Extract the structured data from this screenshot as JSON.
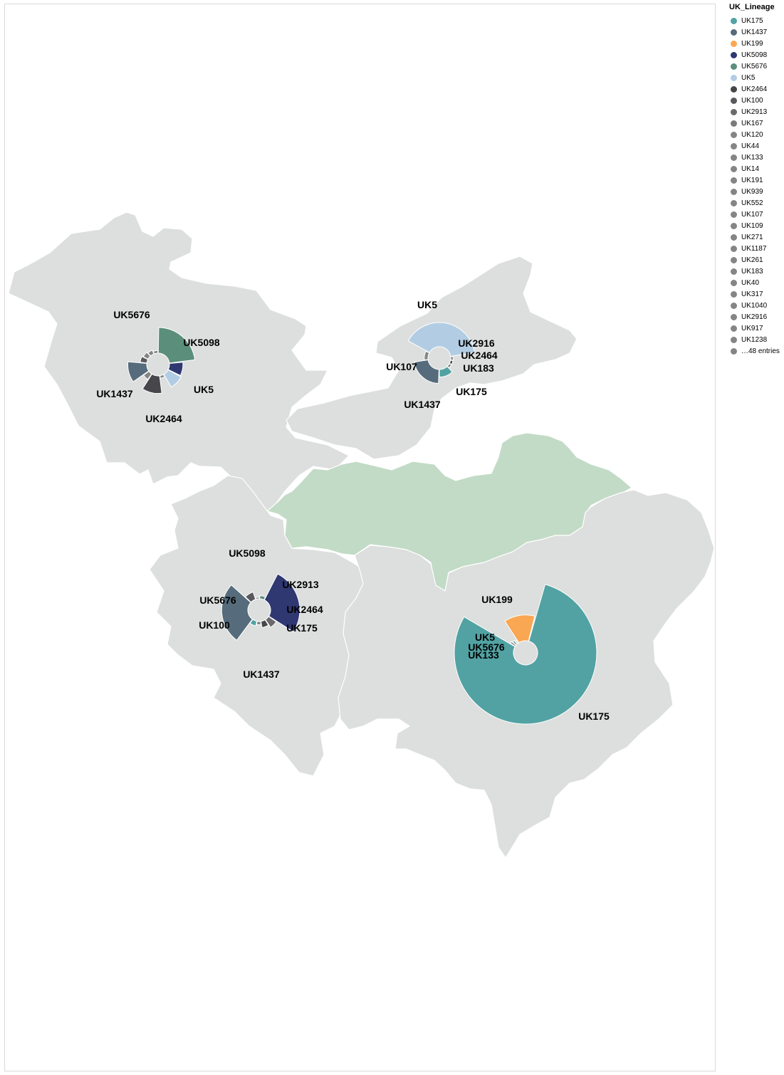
{
  "legend": {
    "title": "UK_Lineage",
    "items": [
      {
        "label": "UK175",
        "color": "#52a2a3"
      },
      {
        "label": "UK1437",
        "color": "#566b7b"
      },
      {
        "label": "UK199",
        "color": "#f9a753"
      },
      {
        "label": "UK5098",
        "color": "#2f3871"
      },
      {
        "label": "UK5676",
        "color": "#5b8e7b"
      },
      {
        "label": "UK5",
        "color": "#b2cde3"
      },
      {
        "label": "UK2464",
        "color": "#47474b"
      },
      {
        "label": "UK100",
        "color": "#59595d"
      },
      {
        "label": "UK2913",
        "color": "#6b6b6e"
      },
      {
        "label": "UK167",
        "color": "#7a7a7a"
      },
      {
        "label": "UK120",
        "color": "#858585"
      },
      {
        "label": "UK44",
        "color": "#858585"
      },
      {
        "label": "UK133",
        "color": "#858585"
      },
      {
        "label": "UK14",
        "color": "#858585"
      },
      {
        "label": "UK191",
        "color": "#858585"
      },
      {
        "label": "UK939",
        "color": "#858585"
      },
      {
        "label": "UK552",
        "color": "#858585"
      },
      {
        "label": "UK107",
        "color": "#858585"
      },
      {
        "label": "UK109",
        "color": "#858585"
      },
      {
        "label": "UK271",
        "color": "#858585"
      },
      {
        "label": "UK1187",
        "color": "#858585"
      },
      {
        "label": "UK261",
        "color": "#858585"
      },
      {
        "label": "UK183",
        "color": "#858585"
      },
      {
        "label": "UK40",
        "color": "#858585"
      },
      {
        "label": "UK317",
        "color": "#858585"
      },
      {
        "label": "UK1040",
        "color": "#858585"
      },
      {
        "label": "UK2916",
        "color": "#858585"
      },
      {
        "label": "UK917",
        "color": "#858585"
      },
      {
        "label": "UK1238",
        "color": "#858585"
      },
      {
        "label": "…48 entries",
        "color": "#858585"
      }
    ]
  },
  "map": {
    "region_fill": "#dcdfdd",
    "highlight_fill": "#c2dbc6",
    "border_color": "#ffffff"
  },
  "chart_data": {
    "type": "radial-pie-map",
    "pies": [
      {
        "id": "northwest",
        "slices": [
          {
            "lineage": "UK5676",
            "share": 0.2,
            "magnitude": 1.0
          },
          {
            "lineage": "UK5098",
            "share": 0.08,
            "magnitude": 0.55
          },
          {
            "lineage": "UK5",
            "share": 0.08,
            "magnitude": 0.6
          },
          {
            "lineage": "UK917",
            "share": 0.05,
            "magnitude": 0.15
          },
          {
            "lineage": "UK2464",
            "share": 0.1,
            "magnitude": 0.7
          },
          {
            "lineage": "UK183",
            "share": 0.05,
            "magnitude": 0.3
          },
          {
            "lineage": "UK1437",
            "share": 0.1,
            "magnitude": 0.75
          },
          {
            "lineage": "UK100",
            "share": 0.05,
            "magnitude": 0.3
          },
          {
            "lineage": "UK120",
            "share": 0.05,
            "magnitude": 0.25
          },
          {
            "lineage": "UK44",
            "share": 0.05,
            "magnitude": 0.2
          },
          {
            "lineage": "UK14",
            "share": 0.05,
            "magnitude": 0.15
          }
        ],
        "labels": [
          "UK5676",
          "UK5098",
          "UK5",
          "UK1437",
          "UK2464"
        ]
      },
      {
        "id": "northeast",
        "slices": [
          {
            "lineage": "UK5",
            "share": 0.32,
            "magnitude": 1.0
          },
          {
            "lineage": "UK2916",
            "share": 0.04,
            "magnitude": 0.15
          },
          {
            "lineage": "UK2464",
            "share": 0.04,
            "magnitude": 0.15
          },
          {
            "lineage": "UK183",
            "share": 0.04,
            "magnitude": 0.15
          },
          {
            "lineage": "UK175",
            "share": 0.1,
            "magnitude": 0.35
          },
          {
            "lineage": "UK1437",
            "share": 0.18,
            "magnitude": 0.6
          },
          {
            "lineage": "UK107",
            "share": 0.08,
            "magnitude": 0.2
          }
        ],
        "labels": [
          "UK5",
          "UK2916",
          "UK2464",
          "UK183",
          "UK175",
          "UK1437",
          "UK107"
        ]
      },
      {
        "id": "southwest",
        "slices": [
          {
            "lineage": "UK5098",
            "share": 0.2,
            "magnitude": 1.0
          },
          {
            "lineage": "UK2913",
            "share": 0.05,
            "magnitude": 0.35
          },
          {
            "lineage": "UK2464",
            "share": 0.05,
            "magnitude": 0.25
          },
          {
            "lineage": "UK109",
            "share": 0.04,
            "magnitude": 0.15
          },
          {
            "lineage": "UK175",
            "share": 0.05,
            "magnitude": 0.2
          },
          {
            "lineage": "UK1437",
            "share": 0.2,
            "magnitude": 0.9
          },
          {
            "lineage": "UK100",
            "share": 0.06,
            "magnitude": 0.3
          },
          {
            "lineage": "UK191",
            "share": 0.04,
            "magnitude": 0.1
          },
          {
            "lineage": "UK5676",
            "share": 0.05,
            "magnitude": 0.15
          }
        ],
        "labels": [
          "UK5098",
          "UK2913",
          "UK5676",
          "UK2464",
          "UK100",
          "UK175",
          "UK1437"
        ]
      },
      {
        "id": "southeast",
        "slices": [
          {
            "lineage": "UK175",
            "share": 0.7,
            "magnitude": 1.0
          },
          {
            "lineage": "UK133",
            "share": 0.02,
            "magnitude": 0.12
          },
          {
            "lineage": "UK5676",
            "share": 0.02,
            "magnitude": 0.1
          },
          {
            "lineage": "UK5",
            "share": 0.02,
            "magnitude": 0.08
          },
          {
            "lineage": "UK199",
            "share": 0.12,
            "magnitude": 0.45
          }
        ],
        "labels": [
          "UK199",
          "UK5",
          "UK5676",
          "UK133",
          "UK175"
        ]
      }
    ]
  }
}
